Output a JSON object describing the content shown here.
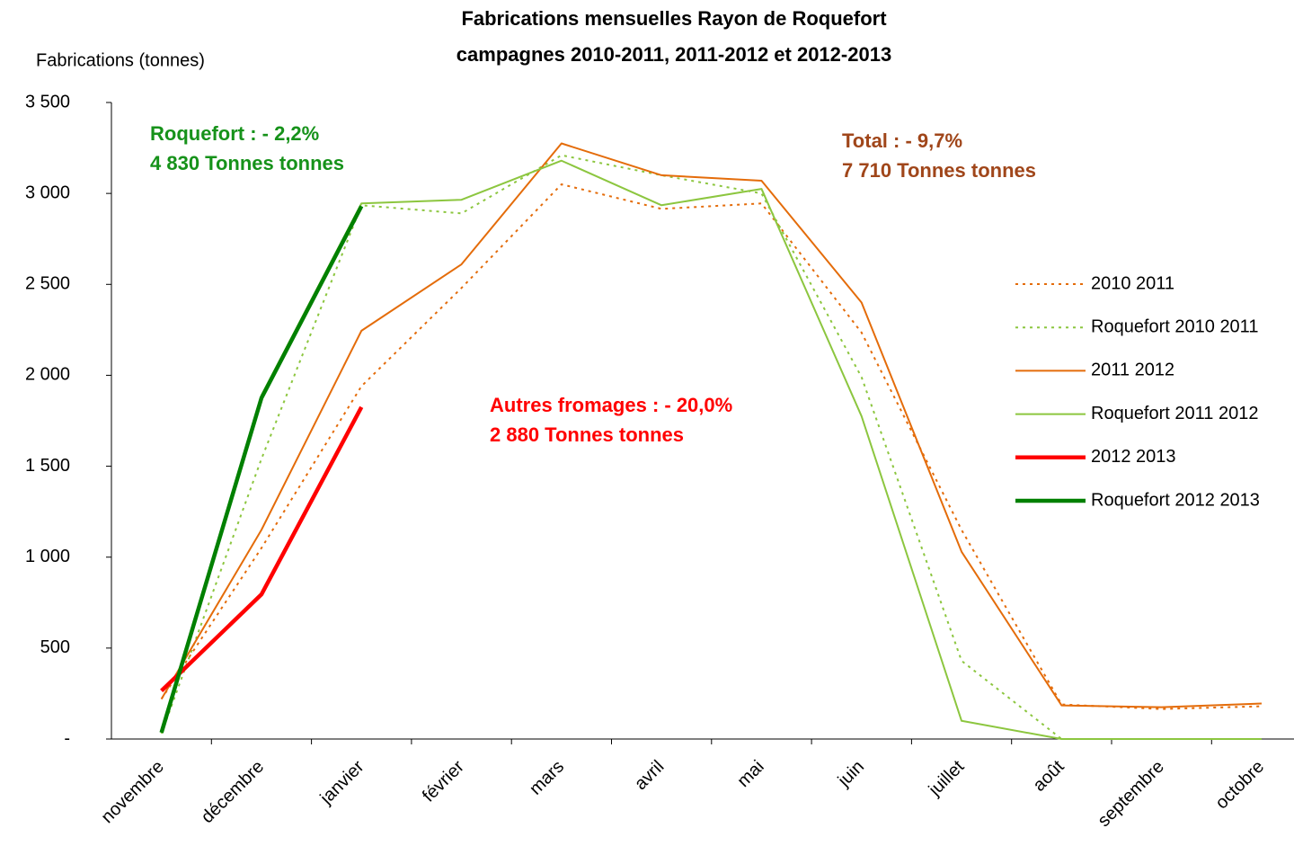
{
  "chart_data": {
    "type": "line",
    "title": [
      "Fabrications mensuelles Rayon de Roquefort",
      "campagnes 2010-2011, 2011-2012 et 2012-2013"
    ],
    "y_label": "Fabrications (tonnes)",
    "categories": [
      "novembre",
      "décembre",
      "janvier",
      "février",
      "mars",
      "avril",
      "mai",
      "juin",
      "juillet",
      "août",
      "septembre",
      "octobre"
    ],
    "ylim": [
      0,
      3500
    ],
    "yticks": [
      {
        "value": 0,
        "label": "-"
      },
      500,
      {
        "value": 1000,
        "label": "1 000"
      },
      {
        "value": 1500,
        "label": "1 500"
      },
      {
        "value": 2000,
        "label": "2 000"
      },
      {
        "value": 2500,
        "label": "2 500"
      },
      {
        "value": 3000,
        "label": "3 000"
      },
      {
        "value": 3500,
        "label": "3 500"
      }
    ],
    "grid": false,
    "legend": "right",
    "series": [
      {
        "name": "2010 2011",
        "color": "#e46c0a",
        "style": "dotted",
        "width": 2,
        "values": [
          220,
          1050,
          1940,
          2480,
          3050,
          2915,
          2945,
          2235,
          1150,
          190,
          165,
          180
        ]
      },
      {
        "name": "Roquefort 2010 2011",
        "color": "#8cc63f",
        "style": "dotted",
        "width": 2,
        "values": [
          30,
          1540,
          2935,
          2890,
          3210,
          3100,
          3000,
          1990,
          430,
          0,
          0,
          0
        ]
      },
      {
        "name": "2011 2012",
        "color": "#e46c0a",
        "style": "solid",
        "width": 2,
        "values": [
          220,
          1150,
          2245,
          2610,
          3275,
          3100,
          3070,
          2400,
          1030,
          185,
          175,
          195
        ]
      },
      {
        "name": "Roquefort 2011 2012",
        "color": "#8cc63f",
        "style": "solid",
        "width": 2,
        "values": [
          35,
          1890,
          2945,
          2965,
          3180,
          2935,
          3025,
          1775,
          100,
          0,
          0,
          0
        ]
      },
      {
        "name": "2012 2013",
        "color": "#ff0000",
        "style": "solid",
        "width": 4.5,
        "values": [
          265,
          795,
          1825,
          null,
          null,
          null,
          null,
          null,
          null,
          null,
          null,
          null
        ]
      },
      {
        "name": "Roquefort 2012 2013",
        "color": "#008000",
        "style": "solid",
        "width": 4.5,
        "values": [
          35,
          1875,
          2930,
          null,
          null,
          null,
          null,
          null,
          null,
          null,
          null,
          null
        ]
      }
    ],
    "annotations": [
      {
        "lines": [
          "Roquefort :  - 2,2%",
          "4 830 Tonnes tonnes"
        ],
        "color": "#16921a"
      },
      {
        "lines": [
          "Total :  - 9,7%",
          "7 710 Tonnes tonnes"
        ],
        "color": "#a0461a"
      },
      {
        "lines": [
          "Autres fromages : - 20,0%",
          "2 880 Tonnes tonnes"
        ],
        "color": "#ff0000"
      }
    ]
  }
}
